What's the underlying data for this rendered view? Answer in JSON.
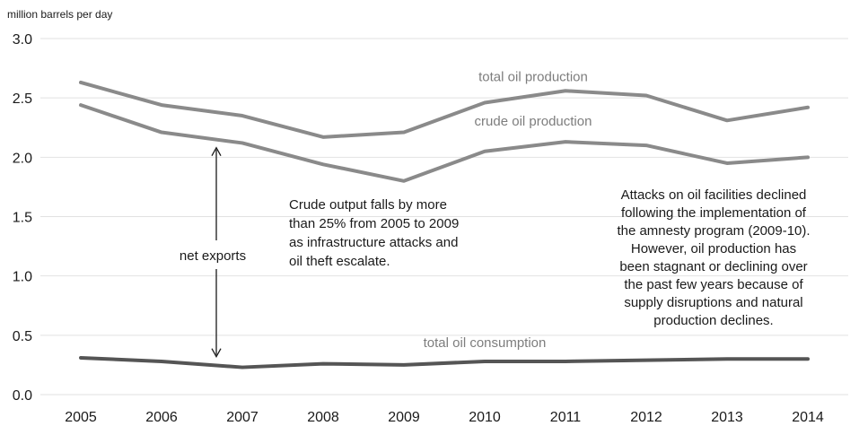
{
  "chart_data": {
    "type": "line",
    "ylabel": "million barrels per day",
    "ylim": [
      0,
      3.0
    ],
    "yticks": [
      "0.0",
      "0.5",
      "1.0",
      "1.5",
      "2.0",
      "2.5",
      "3.0"
    ],
    "grid": true,
    "categories": [
      "2005",
      "2006",
      "2007",
      "2008",
      "2009",
      "2010",
      "2011",
      "2012",
      "2013",
      "2014"
    ],
    "series": [
      {
        "name": "total oil production",
        "color": "#8a8a8a",
        "values": [
          2.63,
          2.44,
          2.35,
          2.17,
          2.21,
          2.46,
          2.56,
          2.52,
          2.31,
          2.42
        ]
      },
      {
        "name": "crude oil production",
        "color": "#8a8a8a",
        "values": [
          2.44,
          2.21,
          2.12,
          1.94,
          1.8,
          2.05,
          2.13,
          2.1,
          1.95,
          2.0
        ]
      },
      {
        "name": "total oil consumption",
        "color": "#555555",
        "values": [
          0.31,
          0.28,
          0.23,
          0.26,
          0.25,
          0.28,
          0.28,
          0.29,
          0.3,
          0.3
        ]
      }
    ],
    "annotations": {
      "net_exports": "net exports",
      "left_note": [
        "Crude  output falls by more",
        "than 25% from 2005 to 2009",
        "as infrastructure attacks and",
        "oil theft escalate."
      ],
      "right_note": [
        "Attacks on oil facilities declined",
        "following  the implementation of",
        "the amnesty program  (2009-10).",
        "However,  oil production has",
        "been stagnant or declining over",
        "the past few years because of",
        "supply disruptions and natural",
        "production declines."
      ]
    }
  }
}
